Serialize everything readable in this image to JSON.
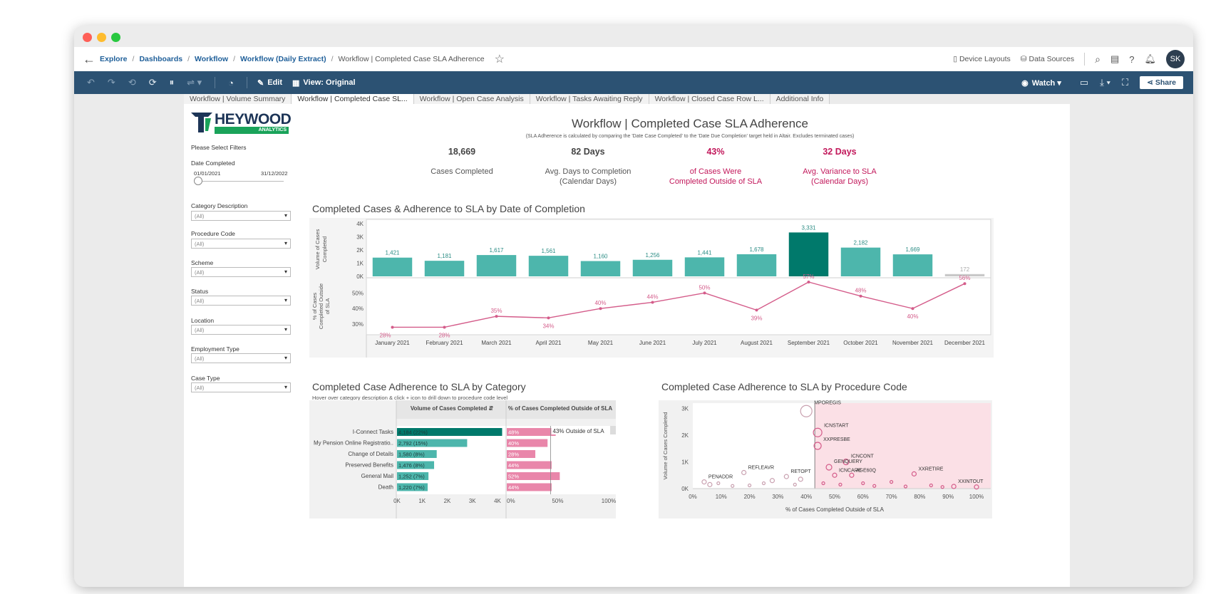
{
  "nav": {
    "breadcrumbs": [
      "Explore",
      "Dashboards",
      "Workflow",
      "Workflow (Daily Extract)"
    ],
    "current": "Workflow | Completed Case SLA Adherence",
    "device_layouts": "Device Layouts",
    "data_sources": "Data Sources",
    "avatar": "SK"
  },
  "toolbar": {
    "edit": "Edit",
    "view": "View: Original",
    "watch": "Watch ▾",
    "share": "Share"
  },
  "tabs": [
    "Workflow | Volume Summary",
    "Workflow | Completed Case SL...",
    "Workflow | Open Case Analysis",
    "Workflow | Tasks Awaiting Reply",
    "Workflow | Closed Case Row L...",
    "Additional Info"
  ],
  "logo": {
    "name": "HEYWOOD",
    "tag": "ANALYTICS"
  },
  "filters": {
    "heading": "Please Select Filters",
    "date_label": "Date Completed",
    "date_start": "01/01/2021",
    "date_end": "31/12/2022",
    "items": [
      {
        "label": "Category Description",
        "value": "(All)"
      },
      {
        "label": "Procedure Code",
        "value": "(All)"
      },
      {
        "label": "Scheme",
        "value": "(All)"
      },
      {
        "label": "Status",
        "value": "(All)"
      },
      {
        "label": "Location",
        "value": "(All)"
      },
      {
        "label": "Employment Type",
        "value": "(All)"
      },
      {
        "label": "Case Type",
        "value": "(All)"
      }
    ]
  },
  "dashboard": {
    "title": "Workflow | Completed Case SLA Adherence",
    "subtitle": "(SLA Adherence is calculated by comparing the 'Date Case Completed' to the 'Date Due Completion' target held in Altair. Excludes terminated cases)",
    "kpis": [
      {
        "value": "18,669",
        "label1": "Cases Completed",
        "label2": ""
      },
      {
        "value": "82 Days",
        "label1": "Avg. Days to Completion",
        "label2": "(Calendar Days)"
      },
      {
        "value": "43%",
        "label1": "of Cases Were",
        "label2": "Completed Outside of SLA"
      },
      {
        "value": "32 Days",
        "label1": "Avg. Variance to SLA",
        "label2": "(Calendar Days)"
      }
    ],
    "colors": {
      "teal": "#4db6ac",
      "teal_dark": "#00796b",
      "pink": "#d45c8a",
      "grey": "#c8c8c8"
    }
  },
  "chart_data": [
    {
      "type": "bar",
      "title": "Completed Cases & Adherence to SLA by Date of Completion",
      "ylabel": "Volume of Cases Completed",
      "categories": [
        "January 2021",
        "February 2021",
        "March 2021",
        "April 2021",
        "May 2021",
        "June 2021",
        "July 2021",
        "August 2021",
        "September 2021",
        "October 2021",
        "November 2021",
        "December 2021"
      ],
      "values": [
        1421,
        1181,
        1617,
        1561,
        1160,
        1256,
        1441,
        1678,
        3331,
        2182,
        1669,
        172
      ],
      "value_labels": [
        "1,421",
        "1,181",
        "1,617",
        "1,561",
        "1,160",
        "1,256",
        "1,441",
        "1,678",
        "3,331",
        "2,182",
        "1,669",
        "172"
      ],
      "yticks": [
        "4K",
        "3K",
        "2K",
        "1K",
        "0K"
      ],
      "ylim": [
        0,
        4000
      ]
    },
    {
      "type": "line",
      "ylabel": "% of Cases Completed Outside of SLA",
      "categories": [
        "January 2021",
        "February 2021",
        "March 2021",
        "April 2021",
        "May 2021",
        "June 2021",
        "July 2021",
        "August 2021",
        "September 2021",
        "October 2021",
        "November 2021",
        "December 2021"
      ],
      "values": [
        28,
        28,
        35,
        34,
        40,
        44,
        50,
        39,
        57,
        48,
        40,
        56
      ],
      "value_labels": [
        "28%",
        "28%",
        "35%",
        "34%",
        "40%",
        "44%",
        "50%",
        "39%",
        "57%",
        "48%",
        "40%",
        "56%"
      ],
      "yticks": [
        "50%",
        "40%",
        "30%"
      ],
      "ylim": [
        25,
        57
      ]
    },
    {
      "type": "bar",
      "title": "Completed Case Adherence to SLA by Category",
      "subtitle": "Hover over category description & click + icon to drill down to procedure code level",
      "header_volume": "Volume of Cases Completed",
      "header_pct": "% of Cases Completed Outside of SLA",
      "categories": [
        "I-Connect Tasks",
        "My Pension Online Registratio..",
        "Change of Details",
        "Preserved Benefits",
        "General Mail",
        "Death"
      ],
      "values": [
        4184,
        2792,
        1580,
        1476,
        1252,
        1220
      ],
      "value_labels": [
        "4,184 (22%)",
        "2,792 (15%)",
        "1,580 (8%)",
        "1,476 (8%)",
        "1,252 (7%)",
        "1,220 (7%)"
      ],
      "pct_values": [
        48,
        40,
        28,
        44,
        52,
        44
      ],
      "pct_labels": [
        "48%",
        "40%",
        "28%",
        "44%",
        "52%",
        "44%"
      ],
      "reference_label": "43% Outside of SLA",
      "reference_value": 43,
      "xticks_volume": [
        "0K",
        "1K",
        "2K",
        "3K",
        "4K"
      ],
      "xticks_pct": [
        "0%",
        "50%",
        "100%"
      ]
    },
    {
      "type": "scatter",
      "title": "Completed Case Adherence to SLA by Procedure Code",
      "xlabel": "% of Cases Completed Outside of SLA",
      "ylabel": "Volume of Cases Completed",
      "xticks": [
        "0%",
        "10%",
        "20%",
        "30%",
        "40%",
        "50%",
        "60%",
        "70%",
        "80%",
        "90%",
        "100%"
      ],
      "yticks": [
        "3K",
        "2K",
        "1K",
        "0K"
      ],
      "xlim": [
        0,
        100
      ],
      "ylim": [
        0,
        3200
      ],
      "highlight_from": 43,
      "points": [
        {
          "label": "MPOREGIS",
          "x": 40,
          "y": 2900,
          "r": 8
        },
        {
          "label": "ICNSTART",
          "x": 44,
          "y": 2100,
          "r": 6
        },
        {
          "label": "XXPRESBE",
          "x": 44,
          "y": 1600,
          "r": 5
        },
        {
          "label": "ICNCONT",
          "x": 54,
          "y": 1000,
          "r": 4
        },
        {
          "label": "GENQUERY",
          "x": 48,
          "y": 800,
          "r": 4
        },
        {
          "label": "REFLEAVR",
          "x": 18,
          "y": 600,
          "r": 3
        },
        {
          "label": "PENADDR",
          "x": 4,
          "y": 250,
          "r": 3
        },
        {
          "label": "RETOPT",
          "x": 33,
          "y": 450,
          "r": 3
        },
        {
          "label": "ICNCARE",
          "x": 50,
          "y": 500,
          "r": 3
        },
        {
          "label": "AGE60Q",
          "x": 56,
          "y": 500,
          "r": 3
        },
        {
          "label": "XXRETIRE",
          "x": 78,
          "y": 550,
          "r": 3
        },
        {
          "label": "XXINTOUT",
          "x": 92,
          "y": 80,
          "r": 3
        },
        {
          "label": "",
          "x": 6,
          "y": 150,
          "r": 3
        },
        {
          "label": "",
          "x": 9,
          "y": 200,
          "r": 2
        },
        {
          "label": "",
          "x": 14,
          "y": 100,
          "r": 2
        },
        {
          "label": "",
          "x": 20,
          "y": 120,
          "r": 2
        },
        {
          "label": "",
          "x": 25,
          "y": 200,
          "r": 2
        },
        {
          "label": "",
          "x": 28,
          "y": 300,
          "r": 3
        },
        {
          "label": "",
          "x": 36,
          "y": 150,
          "r": 2
        },
        {
          "label": "",
          "x": 38,
          "y": 350,
          "r": 3
        },
        {
          "label": "",
          "x": 46,
          "y": 200,
          "r": 2
        },
        {
          "label": "",
          "x": 52,
          "y": 150,
          "r": 2
        },
        {
          "label": "",
          "x": 60,
          "y": 200,
          "r": 2
        },
        {
          "label": "",
          "x": 64,
          "y": 100,
          "r": 2
        },
        {
          "label": "",
          "x": 70,
          "y": 250,
          "r": 2
        },
        {
          "label": "",
          "x": 75,
          "y": 80,
          "r": 2
        },
        {
          "label": "",
          "x": 84,
          "y": 120,
          "r": 2
        },
        {
          "label": "",
          "x": 88,
          "y": 60,
          "r": 2
        },
        {
          "label": "",
          "x": 100,
          "y": 60,
          "r": 3
        }
      ]
    }
  ]
}
